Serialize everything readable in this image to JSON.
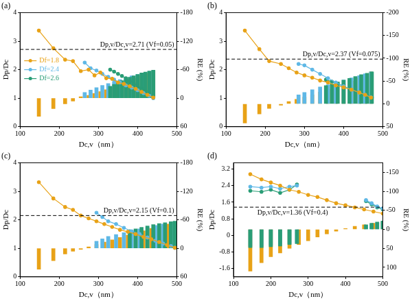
{
  "chart_data": [
    {
      "type": "line",
      "title": "(a)",
      "x_label": "Dc,v（nm）",
      "y_label": "Dp/Dc",
      "y2_label": "RE (%)",
      "grid": false,
      "legend": "left",
      "xlim": [
        100,
        500
      ],
      "xticks": [
        100,
        200,
        300,
        400,
        500
      ],
      "ylim": [
        0,
        4
      ],
      "yticks": [
        0,
        1,
        2,
        3,
        4
      ],
      "y2lim": [
        60,
        -180
      ],
      "y2ticks": [
        -180,
        -120,
        -60,
        0,
        60
      ],
      "annotation": {
        "text": "Dp,v/Dc,v=2.71 (Vf=0.05)",
        "value": 2.71,
        "line_style": "dashed",
        "color": "#000000"
      },
      "series": [
        {
          "name": "Df=1.8",
          "type": "line",
          "marker": "circle",
          "color": "#e8a217",
          "x": [
            148,
            185,
            215,
            235,
            255,
            275,
            290,
            305,
            320,
            335,
            350,
            365,
            380,
            395,
            410,
            425,
            440
          ],
          "values": [
            3.37,
            2.75,
            2.35,
            2.3,
            1.95,
            2.0,
            1.8,
            1.9,
            1.7,
            1.68,
            1.55,
            1.5,
            1.42,
            1.33,
            1.22,
            1.12,
            1.02
          ]
        },
        {
          "name": "Df=1.8",
          "type": "bar",
          "axis": "y2",
          "color": "#e8a217",
          "x": [
            148,
            185,
            215,
            235,
            255,
            275,
            290,
            305,
            320,
            335,
            350,
            365,
            380,
            395,
            410,
            425,
            440
          ],
          "values": [
            38,
            22,
            12,
            6,
            -3,
            -6,
            -10,
            -14,
            -18,
            -22,
            -27,
            -32,
            -37,
            -42,
            -47,
            -52,
            -57
          ]
        },
        {
          "name": "Df=2.4",
          "type": "line",
          "marker": "circle",
          "color": "#5fb8e6",
          "x": [
            265,
            280,
            295,
            310,
            325,
            340,
            355,
            370,
            385,
            400,
            415,
            430,
            440
          ],
          "values": [
            2.25,
            2.05,
            1.97,
            1.85,
            1.75,
            1.65,
            1.55,
            1.45,
            1.37,
            1.28,
            1.18,
            1.08,
            1.0
          ]
        },
        {
          "name": "Df=2.4",
          "type": "bar",
          "axis": "y2",
          "color": "#5fb8e6",
          "x": [
            265,
            280,
            295,
            310,
            325,
            340,
            355,
            370,
            385,
            400,
            415,
            430,
            440
          ],
          "values": [
            -12,
            -17,
            -22,
            -27,
            -31,
            -35,
            -39,
            -43,
            -47,
            -50,
            -53,
            -56,
            -58
          ]
        },
        {
          "name": "Df=2.6",
          "type": "line",
          "marker": "circle",
          "color": "#2a9d76",
          "x": [
            330,
            340,
            350,
            360,
            370,
            380,
            390,
            400,
            410,
            420,
            430,
            440
          ],
          "values": [
            2.0,
            1.93,
            1.85,
            1.78,
            1.7,
            1.6,
            1.52,
            1.43,
            1.35,
            1.25,
            1.15,
            1.03
          ]
        },
        {
          "name": "Df=2.6",
          "type": "bar",
          "axis": "y2",
          "color": "#2a9d76",
          "x": [
            330,
            340,
            350,
            360,
            370,
            380,
            390,
            400,
            410,
            420,
            430,
            440
          ],
          "values": [
            -25,
            -29,
            -33,
            -37,
            -41,
            -44,
            -47,
            -50,
            -53,
            -55,
            -57,
            -59
          ]
        }
      ]
    },
    {
      "type": "line",
      "title": "(b)",
      "x_label": "Dc,v（nm）",
      "y_label": "Dp/Dc",
      "y2_label": "RE (%)",
      "grid": false,
      "xlim": [
        100,
        500
      ],
      "xticks": [
        100,
        200,
        300,
        400,
        500
      ],
      "ylim": [
        0,
        4
      ],
      "yticks": [
        0,
        1,
        2,
        3,
        4
      ],
      "y2lim": [
        50,
        -200
      ],
      "y2ticks": [
        -200,
        -150,
        -100,
        -50,
        0,
        50
      ],
      "annotation": {
        "text": "Dp,v/Dc,v=2.37 (Vf=0.075)",
        "value": 2.37,
        "line_style": "dashed",
        "color": "#000000"
      },
      "series": [
        {
          "name": "Df=1.8",
          "type": "line",
          "marker": "circle",
          "color": "#e8a217",
          "x": [
            148,
            185,
            210,
            240,
            260,
            280,
            300,
            320,
            340,
            360,
            380,
            400,
            420,
            440,
            455,
            470
          ],
          "values": [
            3.37,
            2.72,
            2.3,
            2.2,
            2.05,
            1.9,
            1.8,
            1.72,
            1.62,
            1.55,
            1.45,
            1.38,
            1.3,
            1.2,
            1.12,
            1.02
          ]
        },
        {
          "name": "Df=1.8",
          "type": "bar",
          "axis": "y2",
          "color": "#e8a217",
          "x": [
            148,
            185,
            210,
            240,
            260,
            280,
            300,
            320,
            340,
            360,
            380,
            400,
            420,
            440,
            455,
            470
          ],
          "values": [
            42,
            22,
            10,
            3,
            -5,
            -10,
            -15,
            -20,
            -26,
            -32,
            -38,
            -44,
            -50,
            -57,
            -63,
            -70
          ]
        },
        {
          "name": "Df=2.4",
          "type": "line",
          "marker": "circle",
          "color": "#5fb8e6",
          "x": [
            285,
            300,
            320,
            340,
            360,
            380,
            400,
            420,
            440,
            455,
            470
          ],
          "values": [
            2.2,
            2.15,
            2.0,
            1.85,
            1.7,
            1.55,
            1.42,
            1.3,
            1.2,
            1.12,
            1.03
          ]
        },
        {
          "name": "Df=2.4",
          "type": "bar",
          "axis": "y2",
          "color": "#5fb8e6",
          "x": [
            285,
            300,
            320,
            340,
            360,
            380,
            400,
            420,
            440,
            455,
            470
          ],
          "values": [
            -20,
            -25,
            -31,
            -37,
            -42,
            -47,
            -52,
            -57,
            -62,
            -66,
            -70
          ]
        },
        {
          "name": "Df=2.6",
          "type": "line",
          "marker": "circle",
          "color": "#2a9d76",
          "x": [
            355,
            370,
            385,
            400,
            415,
            430,
            445,
            460,
            472
          ],
          "values": [
            1.65,
            1.58,
            1.5,
            1.42,
            1.33,
            1.25,
            1.17,
            1.1,
            1.02
          ]
        },
        {
          "name": "Df=2.6",
          "type": "bar",
          "axis": "y2",
          "color": "#2a9d76",
          "x": [
            355,
            370,
            385,
            400,
            415,
            430,
            445,
            460,
            472
          ],
          "values": [
            -40,
            -44,
            -48,
            -52,
            -56,
            -60,
            -64,
            -67,
            -70
          ]
        }
      ]
    },
    {
      "type": "line",
      "title": "(c)",
      "x_label": "Dc,v（nm）",
      "y_label": "Dp/Dc",
      "y2_label": "RE (%)",
      "grid": false,
      "xlim": [
        100,
        500
      ],
      "xticks": [
        100,
        200,
        300,
        400,
        500
      ],
      "ylim": [
        0,
        4
      ],
      "yticks": [
        0,
        1,
        2,
        3,
        4
      ],
      "y2lim": [
        60,
        -180
      ],
      "y2ticks": [
        -180,
        -120,
        -60,
        0,
        60
      ],
      "annotation": {
        "text": "Dp,v/Dc,v=2.15 (Vf=0.1)",
        "value": 2.15,
        "line_style": "dashed",
        "color": "#000000"
      },
      "series": [
        {
          "name": "Df=1.8",
          "type": "line",
          "marker": "circle",
          "color": "#e8a217",
          "x": [
            148,
            185,
            215,
            235,
            255,
            275,
            295,
            315,
            335,
            355,
            375,
            395,
            415,
            435,
            455,
            475,
            495
          ],
          "values": [
            3.32,
            2.75,
            2.45,
            2.35,
            2.15,
            2.05,
            1.95,
            1.85,
            1.75,
            1.65,
            1.58,
            1.5,
            1.4,
            1.32,
            1.22,
            1.12,
            1.02
          ]
        },
        {
          "name": "Df=1.8",
          "type": "bar",
          "axis": "y2",
          "color": "#e8a217",
          "x": [
            148,
            185,
            215,
            235,
            255,
            275,
            295,
            315,
            335,
            355,
            375,
            395,
            415,
            435,
            455,
            475,
            495
          ],
          "values": [
            44,
            26,
            12,
            6,
            2,
            -3,
            -8,
            -13,
            -18,
            -23,
            -28,
            -32,
            -37,
            -42,
            -46,
            -51,
            -55
          ]
        },
        {
          "name": "Df=2.4",
          "type": "line",
          "marker": "circle",
          "color": "#5fb8e6",
          "x": [
            295,
            310,
            325,
            345,
            365,
            385,
            405,
            425,
            445,
            465,
            485,
            495
          ],
          "values": [
            2.25,
            2.1,
            1.95,
            1.85,
            1.72,
            1.6,
            1.5,
            1.38,
            1.27,
            1.17,
            1.08,
            1.02
          ]
        },
        {
          "name": "Df=2.4",
          "type": "bar",
          "axis": "y2",
          "color": "#5fb8e6",
          "x": [
            295,
            310,
            325,
            345,
            365,
            385,
            405,
            425,
            445,
            465,
            485,
            495
          ],
          "values": [
            -15,
            -20,
            -25,
            -29,
            -33,
            -37,
            -41,
            -44,
            -48,
            -51,
            -54,
            -56
          ]
        },
        {
          "name": "Df=2.6",
          "type": "line",
          "marker": "circle",
          "color": "#2a9d76",
          "x": [
            380,
            395,
            410,
            425,
            440,
            455,
            470,
            485,
            495
          ],
          "values": [
            1.6,
            1.52,
            1.45,
            1.37,
            1.3,
            1.22,
            1.15,
            1.08,
            1.02
          ]
        },
        {
          "name": "Df=2.6",
          "type": "bar",
          "axis": "y2",
          "color": "#2a9d76",
          "x": [
            380,
            395,
            410,
            425,
            440,
            455,
            470,
            485,
            495
          ],
          "values": [
            -38,
            -41,
            -44,
            -47,
            -50,
            -52,
            -54,
            -56,
            -57
          ]
        }
      ]
    },
    {
      "type": "line",
      "title": "(d)",
      "x_label": "Dc,v（nm）",
      "y_label": "Dp/Dc",
      "y2_label": "RE (%)",
      "grid": false,
      "xlim": [
        100,
        500
      ],
      "xticks": [
        100,
        200,
        300,
        400,
        500
      ],
      "ylim": [
        -2.0,
        3.5
      ],
      "yticks": [
        -1.6,
        -0.8,
        0,
        0.8,
        1.6,
        2.4,
        3.2
      ],
      "y2lim": [
        125,
        -175
      ],
      "y2ticks": [
        -150,
        -100,
        -50,
        0,
        50,
        100
      ],
      "annotation": {
        "text": "Dp,v/Dc,v=1.36 (Vf=0.4)",
        "value": 1.36,
        "line_style": "dashed",
        "color": "#000000"
      },
      "series": [
        {
          "name": "Df=1.8",
          "type": "line",
          "marker": "circle",
          "color": "#e8a217",
          "x": [
            145,
            175,
            200,
            225,
            250,
            275,
            300,
            325,
            350,
            375,
            400,
            425,
            450,
            475,
            500
          ],
          "values": [
            2.95,
            2.7,
            2.55,
            2.4,
            2.2,
            2.1,
            1.95,
            1.85,
            1.7,
            1.55,
            1.45,
            1.35,
            1.25,
            1.15,
            1.05
          ]
        },
        {
          "name": "Df=1.8",
          "type": "bar",
          "axis": "y2",
          "color": "#e8a217",
          "x": [
            145,
            175,
            200,
            225,
            250,
            275,
            300,
            325,
            350,
            375,
            400,
            425,
            450,
            475,
            500
          ],
          "values": [
            110,
            88,
            72,
            62,
            50,
            40,
            30,
            20,
            12,
            5,
            -2,
            -8,
            -12,
            -16,
            -20
          ]
        },
        {
          "name": "Df=2.4",
          "type": "line",
          "marker": "circle",
          "color": "#5fb8e6",
          "x": [
            145,
            175,
            200,
            225,
            250,
            270,
            360,
            455,
            470,
            485,
            500
          ],
          "values": [
            2.35,
            2.3,
            2.35,
            2.25,
            2.35,
            2.4,
            null,
            1.7,
            1.55,
            1.4,
            1.3
          ]
        },
        {
          "name": "Df=2.4",
          "type": "bar",
          "axis": "y2",
          "color": "#5fb8e6",
          "x": [
            145,
            175,
            200,
            225,
            250,
            270,
            360,
            455,
            470,
            485,
            500
          ],
          "values": [
            45,
            45,
            42,
            40,
            38,
            36,
            null,
            -10,
            -14,
            -17,
            -20
          ]
        },
        {
          "name": "Df=2.6",
          "type": "line",
          "marker": "circle",
          "color": "#2a9d76",
          "x": [
            145,
            175,
            200,
            225,
            250,
            270,
            360,
            455,
            470,
            485,
            500
          ],
          "values": [
            2.15,
            2.1,
            2.2,
            2.05,
            2.2,
            2.45,
            null,
            1.65,
            1.5,
            1.35,
            1.25
          ]
        },
        {
          "name": "Df=2.6",
          "type": "bar",
          "axis": "y2",
          "color": "#2a9d76",
          "x": [
            145,
            175,
            200,
            225,
            250,
            270,
            360,
            455,
            470,
            485,
            500
          ],
          "values": [
            48,
            48,
            46,
            44,
            40,
            38,
            null,
            -12,
            -16,
            -19,
            -22
          ]
        }
      ]
    }
  ]
}
